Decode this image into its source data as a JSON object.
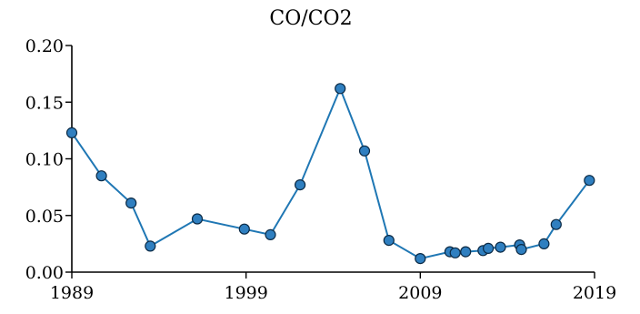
{
  "chart_data": {
    "type": "line",
    "title": "CO/CO2",
    "xlabel": "",
    "ylabel": "",
    "xlim": [
      1989,
      2019
    ],
    "ylim": [
      0,
      0.2
    ],
    "x_ticks": [
      "1989",
      "1999",
      "2009",
      "2019"
    ],
    "y_ticks": [
      "0.00",
      "0.05",
      "0.10",
      "0.15",
      "0.20"
    ],
    "grid": false,
    "legend": "none",
    "colors": {
      "line": "#1f77b4",
      "marker": "#2f7fc0",
      "marker_edge": "#0b2a45",
      "axis": "#000000"
    },
    "series": [
      {
        "x": [
          1989.0,
          1990.7,
          1992.4,
          1993.5,
          1996.2,
          1998.9,
          2000.4,
          2002.1,
          2004.4,
          2005.8,
          2007.2,
          2009.0,
          2010.7,
          2011.0,
          2011.6,
          2012.6,
          2012.9,
          2013.6,
          2014.7,
          2014.8,
          2016.1,
          2016.8,
          2018.7
        ],
        "y": [
          0.123,
          0.085,
          0.061,
          0.023,
          0.047,
          0.038,
          0.033,
          0.077,
          0.162,
          0.107,
          0.028,
          0.012,
          0.018,
          0.017,
          0.018,
          0.019,
          0.021,
          0.022,
          0.024,
          0.02,
          0.025,
          0.042,
          0.081
        ]
      }
    ]
  }
}
